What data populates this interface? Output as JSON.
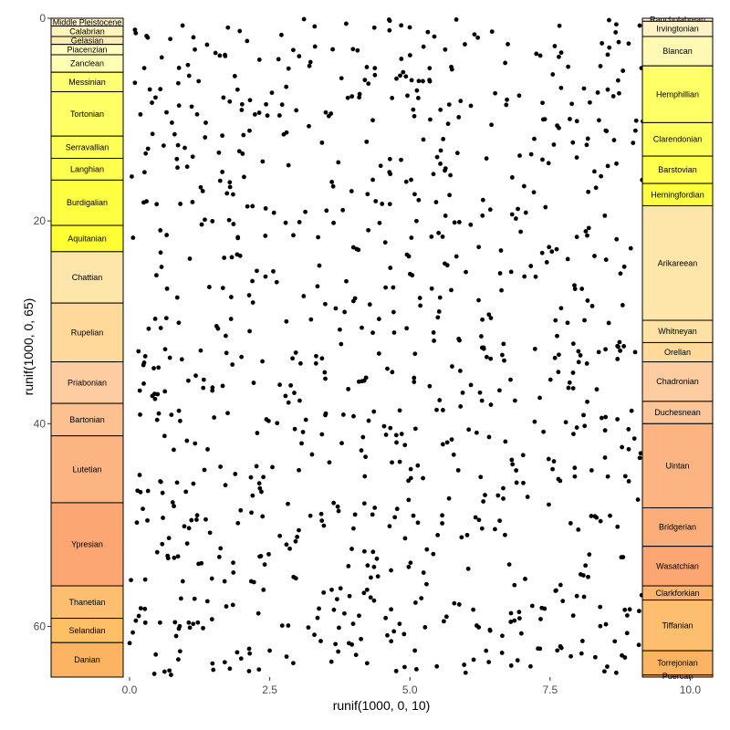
{
  "chart_data": {
    "type": "scatter",
    "xlabel": "runif(1000, 0, 10)",
    "ylabel": "runif(1000, 0, 65)",
    "xlim": [
      -1.4,
      10.4
    ],
    "ylim": [
      0,
      65
    ],
    "y_reversed": true,
    "x_ticks": [
      0.0,
      2.5,
      5.0,
      7.5,
      10.0
    ],
    "x_tick_labels": [
      "0.0",
      "2.5",
      "5.0",
      "7.5",
      "10.0"
    ],
    "y_ticks": [
      0,
      20,
      40,
      60
    ],
    "y_tick_labels": [
      "0",
      "20",
      "40",
      "60"
    ],
    "grid": false,
    "point_color": "#000000",
    "point_count": 1000,
    "point_seed": 20240611,
    "left_timescale": [
      {
        "name": "Middle Pleistocene",
        "top": 0.0,
        "bottom": 0.77,
        "color": "#FFF2C7"
      },
      {
        "name": "Calabrian",
        "top": 0.77,
        "bottom": 1.8,
        "color": "#FFF2BA"
      },
      {
        "name": "Gelasian",
        "top": 1.8,
        "bottom": 2.58,
        "color": "#FFEDB3"
      },
      {
        "name": "Piacenzian",
        "top": 2.58,
        "bottom": 3.6,
        "color": "#FFFFBF"
      },
      {
        "name": "Zanclean",
        "top": 3.6,
        "bottom": 5.33,
        "color": "#FFFFB3"
      },
      {
        "name": "Messinian",
        "top": 5.33,
        "bottom": 7.25,
        "color": "#FFFF73"
      },
      {
        "name": "Tortonian",
        "top": 7.25,
        "bottom": 11.63,
        "color": "#FFFF66"
      },
      {
        "name": "Serravallian",
        "top": 11.63,
        "bottom": 13.82,
        "color": "#FFFF59"
      },
      {
        "name": "Langhian",
        "top": 13.82,
        "bottom": 15.97,
        "color": "#FFFF4D"
      },
      {
        "name": "Burdigalian",
        "top": 15.97,
        "bottom": 20.44,
        "color": "#FFFF41"
      },
      {
        "name": "Aquitanian",
        "top": 20.44,
        "bottom": 23.03,
        "color": "#FFFF33"
      },
      {
        "name": "Chattian",
        "top": 23.03,
        "bottom": 28.1,
        "color": "#FEE6AA"
      },
      {
        "name": "Rupelian",
        "top": 28.1,
        "bottom": 33.9,
        "color": "#FED99A"
      },
      {
        "name": "Priabonian",
        "top": 33.9,
        "bottom": 38.0,
        "color": "#FDCDA1"
      },
      {
        "name": "Bartonian",
        "top": 38.0,
        "bottom": 41.2,
        "color": "#FDC091"
      },
      {
        "name": "Lutetian",
        "top": 41.2,
        "bottom": 47.8,
        "color": "#FCB482"
      },
      {
        "name": "Ypresian",
        "top": 47.8,
        "bottom": 56.0,
        "color": "#FCA773"
      },
      {
        "name": "Thanetian",
        "top": 56.0,
        "bottom": 59.2,
        "color": "#FDBF6F"
      },
      {
        "name": "Selandian",
        "top": 59.2,
        "bottom": 61.6,
        "color": "#FEBF65"
      },
      {
        "name": "Danian",
        "top": 61.6,
        "bottom": 65.0,
        "color": "#FDB462"
      }
    ],
    "right_timescale": [
      {
        "name": "Rancholabrean",
        "top": 0.0,
        "bottom": 0.3,
        "color": "#FFF2E0"
      },
      {
        "name": "Irvingtonian",
        "top": 0.3,
        "bottom": 1.8,
        "color": "#FFF2C7"
      },
      {
        "name": "Blancan",
        "top": 1.8,
        "bottom": 4.7,
        "color": "#FFF9B3"
      },
      {
        "name": "Hemphillian",
        "top": 4.7,
        "bottom": 10.3,
        "color": "#FFFF66"
      },
      {
        "name": "Clarendonian",
        "top": 10.3,
        "bottom": 13.6,
        "color": "#FFFF59"
      },
      {
        "name": "Barstovian",
        "top": 13.6,
        "bottom": 16.3,
        "color": "#FFFF4D"
      },
      {
        "name": "Hemingfordian",
        "top": 16.3,
        "bottom": 18.5,
        "color": "#FFFF41"
      },
      {
        "name": "Arikareean",
        "top": 18.5,
        "bottom": 29.8,
        "color": "#FEE6AA"
      },
      {
        "name": "Whitneyan",
        "top": 29.8,
        "bottom": 32.0,
        "color": "#FEE1A5"
      },
      {
        "name": "Orellan",
        "top": 32.0,
        "bottom": 33.9,
        "color": "#FED99A"
      },
      {
        "name": "Chadronian",
        "top": 33.9,
        "bottom": 37.8,
        "color": "#FDCDA1"
      },
      {
        "name": "Duchesnean",
        "top": 37.8,
        "bottom": 40.0,
        "color": "#FDC498"
      },
      {
        "name": "Uintan",
        "top": 40.0,
        "bottom": 48.3,
        "color": "#FCB482"
      },
      {
        "name": "Bridgerian",
        "top": 48.3,
        "bottom": 52.1,
        "color": "#FCAE7A"
      },
      {
        "name": "Wasatchian",
        "top": 52.1,
        "bottom": 56.0,
        "color": "#FCA773"
      },
      {
        "name": "Clarkforkian",
        "top": 56.0,
        "bottom": 57.4,
        "color": "#FDB56E"
      },
      {
        "name": "Tiffanian",
        "top": 57.4,
        "bottom": 62.4,
        "color": "#FDBF6F"
      },
      {
        "name": "Torrejonian",
        "top": 62.4,
        "bottom": 64.8,
        "color": "#FDB462"
      },
      {
        "name": "Puercan",
        "top": 64.8,
        "bottom": 65.0,
        "color": "#FDAE5E"
      }
    ]
  }
}
